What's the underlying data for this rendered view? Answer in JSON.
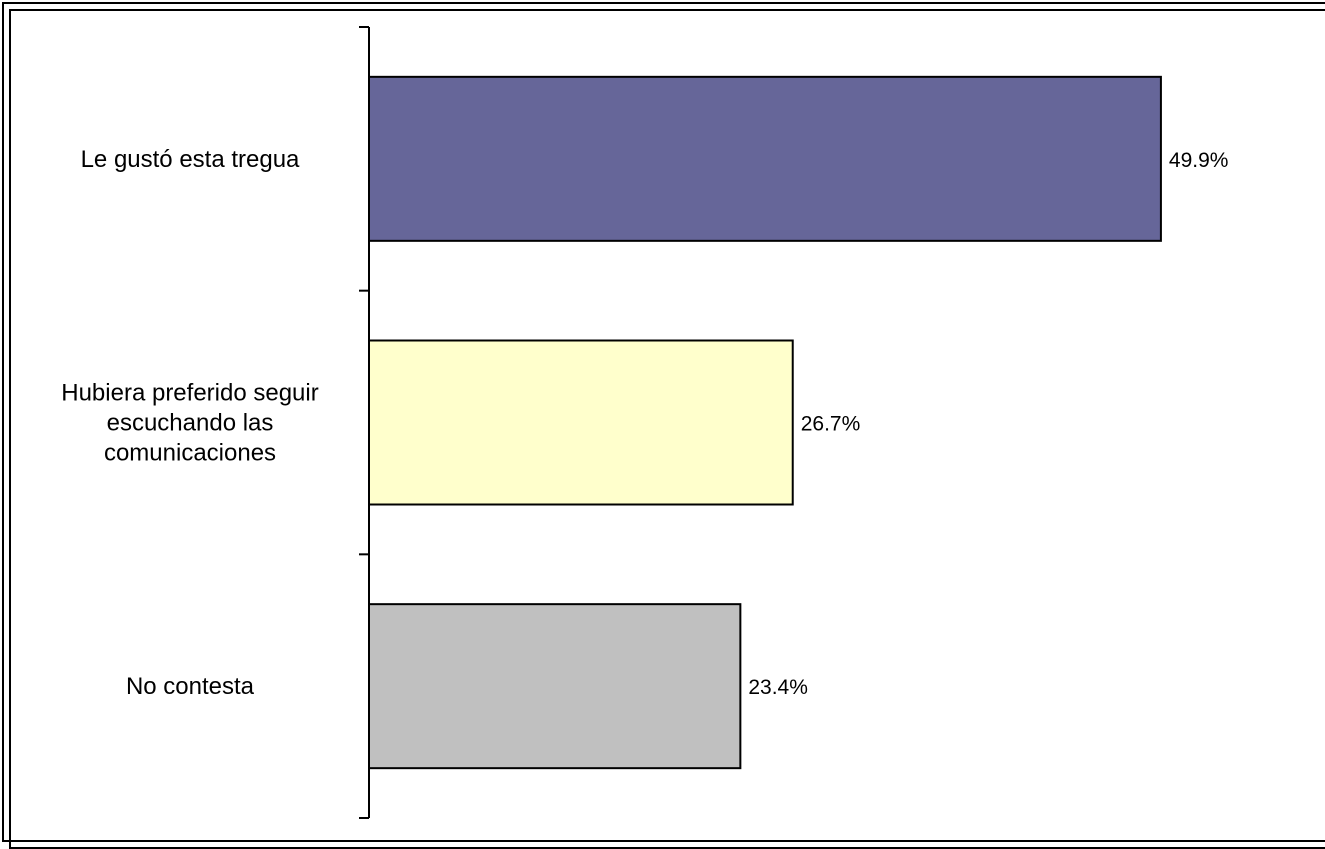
{
  "chart_data": {
    "type": "bar",
    "orientation": "horizontal",
    "title": "",
    "xlabel": "",
    "ylabel": "",
    "categories": [
      [
        "Le gustó esta tregua"
      ],
      [
        "Hubiera preferido seguir",
        "escuchando las",
        "comunicaciones"
      ],
      [
        "No contesta"
      ]
    ],
    "values": [
      49.9,
      26.7,
      23.4
    ],
    "value_labels": [
      "49.9%",
      "26.7%",
      "23.4%"
    ],
    "bar_colors": [
      "#666699",
      "#ffffcc",
      "#c0c0c0"
    ],
    "xlim": [
      0,
      100
    ],
    "grid": false,
    "legend": "none"
  }
}
